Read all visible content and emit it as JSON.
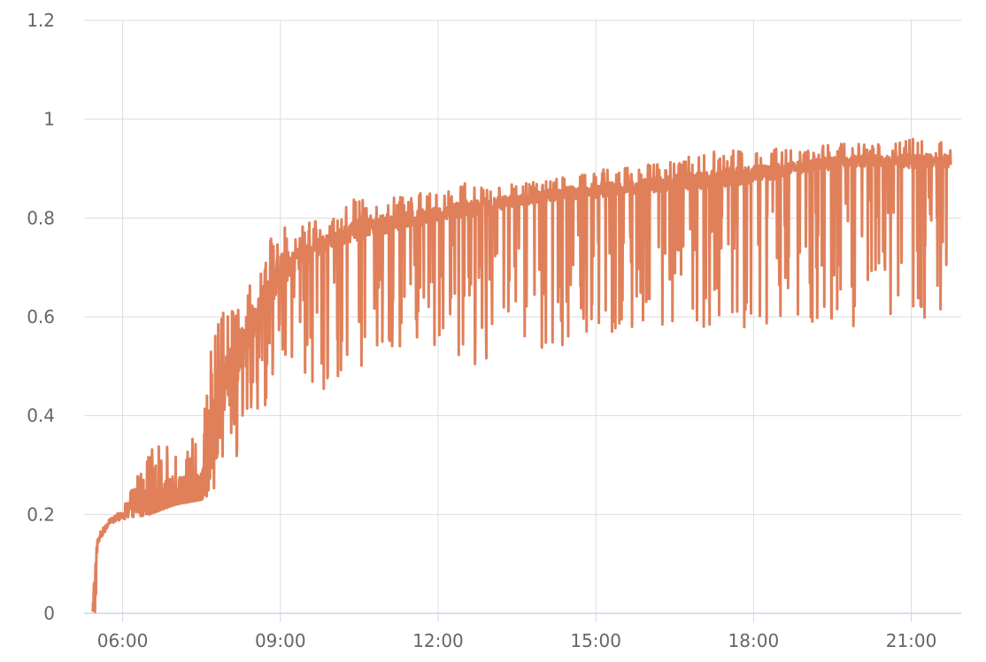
{
  "chart_data": {
    "type": "line",
    "title": "",
    "xlabel": "",
    "ylabel": "",
    "xlim": [
      "05:16",
      "21:57"
    ],
    "ylim": [
      0,
      1.2
    ],
    "x_ticks": [
      "06:00",
      "09:00",
      "12:00",
      "15:00",
      "18:00",
      "21:00"
    ],
    "y_ticks": [
      "0",
      "0.2",
      "0.4",
      "0.6",
      "0.8",
      "1",
      "1.2"
    ],
    "grid": true,
    "legend": "none",
    "colors": {
      "series": "#e0805a",
      "grid": "#dddddd",
      "axis": "#ccd6eb",
      "tick_text": "#666666"
    },
    "series": [
      {
        "envelope": [
          {
            "x": "05:26",
            "y_min": 0.0,
            "y_max": 0.01
          },
          {
            "x": "05:29",
            "y_min": 0.0,
            "y_max": 0.12
          },
          {
            "x": "05:31",
            "y_min": 0.13,
            "y_max": 0.15
          },
          {
            "x": "05:35",
            "y_min": 0.15,
            "y_max": 0.17
          },
          {
            "x": "05:45",
            "y_min": 0.18,
            "y_max": 0.19
          },
          {
            "x": "06:00",
            "y_min": 0.19,
            "y_max": 0.21
          },
          {
            "x": "06:30",
            "y_min": 0.2,
            "y_max": 0.33
          },
          {
            "x": "07:00",
            "y_min": 0.22,
            "y_max": 0.36
          },
          {
            "x": "07:30",
            "y_min": 0.23,
            "y_max": 0.37
          },
          {
            "x": "07:45",
            "y_min": 0.24,
            "y_max": 0.6
          },
          {
            "x": "08:00",
            "y_min": 0.29,
            "y_max": 0.64
          },
          {
            "x": "08:30",
            "y_min": 0.37,
            "y_max": 0.7
          },
          {
            "x": "09:00",
            "y_min": 0.45,
            "y_max": 0.79
          },
          {
            "x": "09:30",
            "y_min": 0.45,
            "y_max": 0.79
          },
          {
            "x": "10:00",
            "y_min": 0.45,
            "y_max": 0.8
          },
          {
            "x": "10:30",
            "y_min": 0.47,
            "y_max": 0.85
          },
          {
            "x": "11:00",
            "y_min": 0.51,
            "y_max": 0.85
          },
          {
            "x": "11:30",
            "y_min": 0.52,
            "y_max": 0.85
          },
          {
            "x": "12:00",
            "y_min": 0.53,
            "y_max": 0.85
          },
          {
            "x": "12:30",
            "y_min": 0.49,
            "y_max": 0.87
          },
          {
            "x": "13:00",
            "y_min": 0.49,
            "y_max": 0.87
          },
          {
            "x": "13:30",
            "y_min": 0.54,
            "y_max": 0.87
          },
          {
            "x": "14:00",
            "y_min": 0.53,
            "y_max": 0.88
          },
          {
            "x": "14:30",
            "y_min": 0.53,
            "y_max": 0.89
          },
          {
            "x": "15:00",
            "y_min": 0.57,
            "y_max": 0.9
          },
          {
            "x": "15:30",
            "y_min": 0.57,
            "y_max": 0.9
          },
          {
            "x": "16:00",
            "y_min": 0.58,
            "y_max": 0.91
          },
          {
            "x": "16:30",
            "y_min": 0.57,
            "y_max": 0.92
          },
          {
            "x": "17:00",
            "y_min": 0.57,
            "y_max": 0.93
          },
          {
            "x": "17:30",
            "y_min": 0.56,
            "y_max": 0.94
          },
          {
            "x": "18:00",
            "y_min": 0.57,
            "y_max": 0.94
          },
          {
            "x": "18:30",
            "y_min": 0.53,
            "y_max": 0.94
          },
          {
            "x": "19:00",
            "y_min": 0.58,
            "y_max": 0.94
          },
          {
            "x": "19:30",
            "y_min": 0.58,
            "y_max": 0.95
          },
          {
            "x": "20:00",
            "y_min": 0.58,
            "y_max": 0.95
          },
          {
            "x": "20:30",
            "y_min": 0.6,
            "y_max": 0.95
          },
          {
            "x": "21:00",
            "y_min": 0.58,
            "y_max": 0.96
          },
          {
            "x": "21:30",
            "y_min": 0.6,
            "y_max": 0.96
          },
          {
            "x": "21:45",
            "y_min": 0.62,
            "y_max": 0.95
          }
        ],
        "typical": [
          {
            "x": "05:45",
            "y": 0.18
          },
          {
            "x": "06:30",
            "y": 0.21
          },
          {
            "x": "07:30",
            "y": 0.23
          },
          {
            "x": "08:00",
            "y": 0.45
          },
          {
            "x": "08:30",
            "y": 0.58
          },
          {
            "x": "09:00",
            "y": 0.68
          },
          {
            "x": "09:30",
            "y": 0.72
          },
          {
            "x": "10:00",
            "y": 0.75
          },
          {
            "x": "10:30",
            "y": 0.77
          },
          {
            "x": "11:00",
            "y": 0.78
          },
          {
            "x": "12:00",
            "y": 0.8
          },
          {
            "x": "13:00",
            "y": 0.82
          },
          {
            "x": "14:00",
            "y": 0.84
          },
          {
            "x": "15:00",
            "y": 0.85
          },
          {
            "x": "16:00",
            "y": 0.86
          },
          {
            "x": "17:00",
            "y": 0.87
          },
          {
            "x": "18:00",
            "y": 0.88
          },
          {
            "x": "19:00",
            "y": 0.9
          },
          {
            "x": "20:00",
            "y": 0.91
          },
          {
            "x": "21:00",
            "y": 0.91
          },
          {
            "x": "21:45",
            "y": 0.91
          }
        ]
      }
    ]
  }
}
